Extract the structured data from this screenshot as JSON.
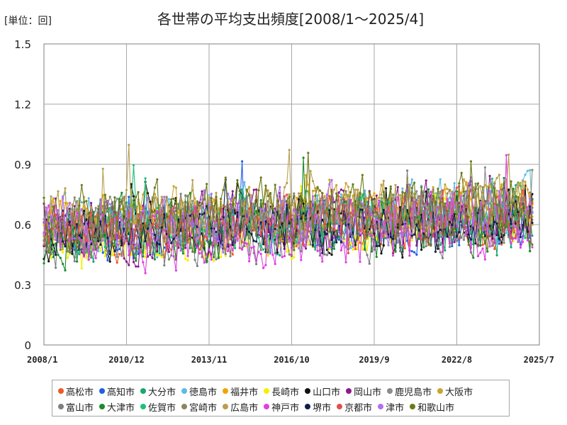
{
  "chart_data": {
    "type": "line",
    "title": "各世帯の平均支出頻度[2008/1～2025/4]",
    "unit_label": "[単位：回]",
    "x_start": "2008/1",
    "x_end": "2025/4",
    "x_ticks": [
      "2008/1",
      "2010/12",
      "2013/11",
      "2016/10",
      "2019/9",
      "2022/8",
      "2025/7"
    ],
    "ylim": [
      0,
      1.5
    ],
    "y_ticks": [
      "0",
      "0.3",
      "0.6",
      "0.9",
      "1.2",
      "1.5"
    ],
    "grid": true,
    "legend_position": "bottom",
    "series": [
      {
        "name": "高松市",
        "color": "#ed5a24"
      },
      {
        "name": "高知市",
        "color": "#1f5fe0"
      },
      {
        "name": "大分市",
        "color": "#17a86b"
      },
      {
        "name": "徳島市",
        "color": "#5bbce6"
      },
      {
        "name": "福井市",
        "color": "#f0a500"
      },
      {
        "name": "長崎市",
        "color": "#f5f000"
      },
      {
        "name": "山口市",
        "color": "#111111"
      },
      {
        "name": "岡山市",
        "color": "#8c1a8c"
      },
      {
        "name": "鹿児島市",
        "color": "#8c8c8c"
      },
      {
        "name": "大阪市",
        "color": "#c9a431"
      },
      {
        "name": "富山市",
        "color": "#7f7f7f"
      },
      {
        "name": "大津市",
        "color": "#1e8a2c"
      },
      {
        "name": "佐賀市",
        "color": "#1fbf7a"
      },
      {
        "name": "宮崎市",
        "color": "#8a8760"
      },
      {
        "name": "広島市",
        "color": "#b8a050"
      },
      {
        "name": "神戸市",
        "color": "#e040e0"
      },
      {
        "name": "堺市",
        "color": "#0d1f45"
      },
      {
        "name": "京都市",
        "color": "#e05050"
      },
      {
        "name": "津市",
        "color": "#b070f0"
      },
      {
        "name": "和歌山市",
        "color": "#6b7a1a"
      }
    ]
  }
}
